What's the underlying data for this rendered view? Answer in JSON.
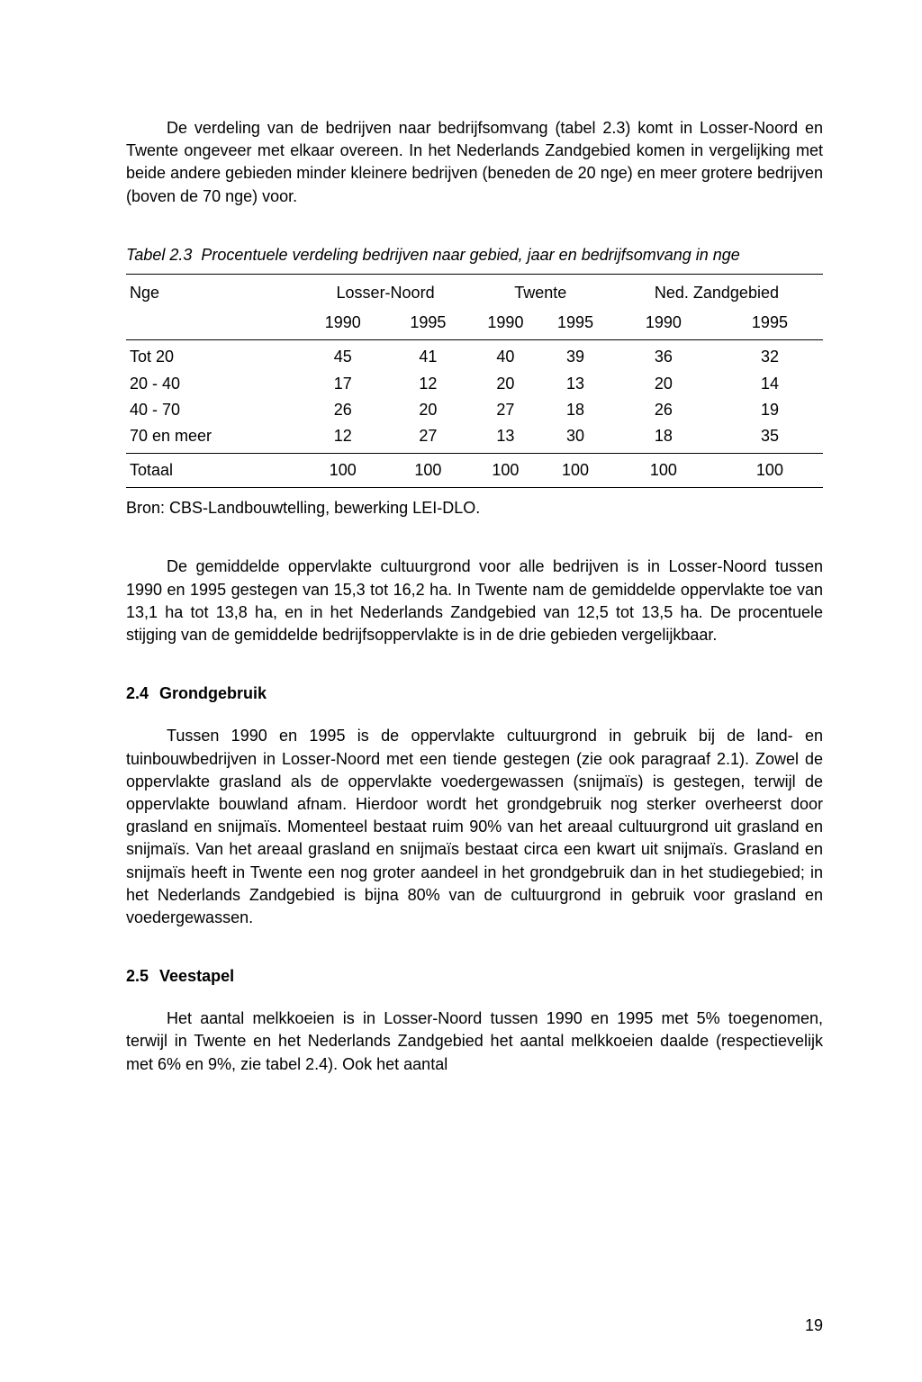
{
  "para1": "De verdeling van de bedrijven naar bedrijfsomvang (tabel 2.3) komt in Losser-Noord en Twente ongeveer met elkaar overeen. In het Nederlands Zandgebied komen in vergelijking met beide andere gebieden minder kleinere bedrijven (beneden de 20 nge) en meer grotere bedrijven (boven de 70 nge) voor.",
  "table": {
    "caption_label": "Tabel 2.3",
    "caption_text": "Procentuele verdeling bedrijven naar gebied, jaar en bedrijfsomvang in nge",
    "col_label": "Nge",
    "regions": [
      "Losser-Noord",
      "Twente",
      "Ned. Zandgebied"
    ],
    "years": [
      "1990",
      "1995",
      "1990",
      "1995",
      "1990",
      "1995"
    ],
    "rows": [
      {
        "label": "Tot 20",
        "vals": [
          "45",
          "41",
          "40",
          "39",
          "36",
          "32"
        ]
      },
      {
        "label": "20 - 40",
        "vals": [
          "17",
          "12",
          "20",
          "13",
          "20",
          "14"
        ]
      },
      {
        "label": "40 - 70",
        "vals": [
          "26",
          "20",
          "27",
          "18",
          "26",
          "19"
        ]
      },
      {
        "label": "70 en meer",
        "vals": [
          "12",
          "27",
          "13",
          "30",
          "18",
          "35"
        ]
      }
    ],
    "total": {
      "label": "Totaal",
      "vals": [
        "100",
        "100",
        "100",
        "100",
        "100",
        "100"
      ]
    },
    "source": "Bron: CBS-Landbouwtelling, bewerking LEI-DLO."
  },
  "para2": "De gemiddelde oppervlakte cultuurgrond voor alle bedrijven is in Losser-Noord tussen 1990 en 1995 gestegen van 15,3 tot 16,2 ha. In Twente nam de gemiddelde oppervlakte toe van 13,1 ha tot 13,8 ha, en in het Nederlands Zandgebied van 12,5 tot 13,5 ha. De procentuele stijging van de gemiddelde bedrijfsoppervlakte is in de drie gebieden vergelijkbaar.",
  "section24": {
    "num": "2.4",
    "title": "Grondgebruik",
    "body": "Tussen 1990 en 1995 is de oppervlakte cultuurgrond in gebruik bij de land- en tuinbouwbedrijven in Losser-Noord met een tiende gestegen (zie ook paragraaf 2.1). Zowel de oppervlakte grasland als de oppervlakte voedergewassen (snijmaïs) is gestegen, terwijl de oppervlakte bouwland afnam. Hierdoor wordt het grondgebruik nog sterker overheerst door grasland en snijmaïs. Momenteel bestaat ruim 90% van het areaal cultuurgrond uit grasland en snijmaïs. Van het areaal grasland en snijmaïs bestaat circa een kwart uit snijmaïs. Grasland en snijmaïs heeft in Twente een nog groter aandeel in het grondgebruik dan in het studiegebied; in het Nederlands Zandgebied is bijna 80% van de cultuurgrond in gebruik voor grasland en voedergewassen."
  },
  "section25": {
    "num": "2.5",
    "title": "Veestapel",
    "body": "Het aantal melkkoeien is in Losser-Noord tussen 1990 en 1995 met 5% toegenomen, terwijl in Twente en het Nederlands Zandgebied het aantal melkkoeien daalde (respectievelijk met 6% en 9%, zie tabel 2.4). Ook het aantal"
  },
  "page_number": "19"
}
